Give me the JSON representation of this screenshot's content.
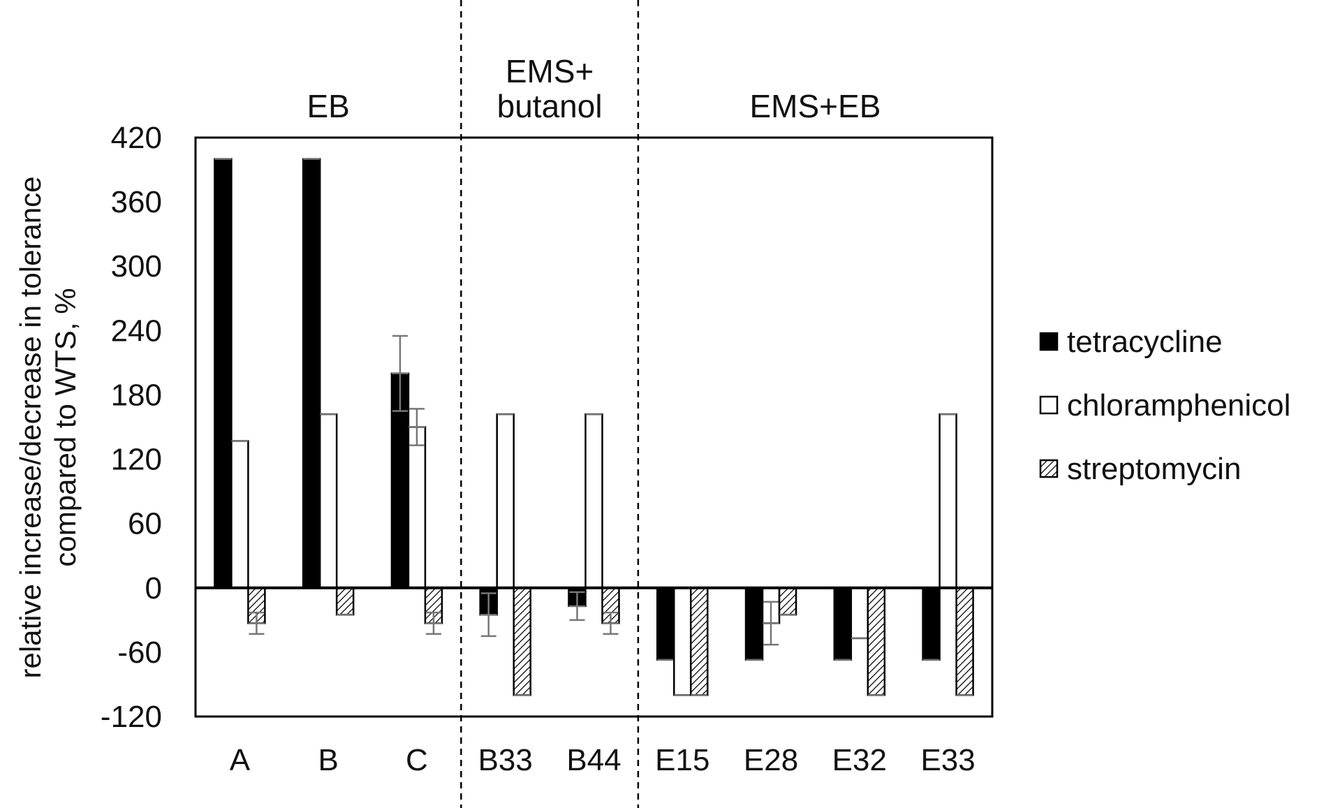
{
  "chart_data": {
    "type": "bar",
    "ylabel": [
      "relative increase/decrease in tolerance",
      "compared to WTS, %"
    ],
    "ylim": [
      -120,
      420
    ],
    "yticks": [
      420,
      360,
      300,
      240,
      180,
      120,
      60,
      0,
      -60,
      -120
    ],
    "categories": [
      "A",
      "B",
      "C",
      "B33",
      "B44",
      "E15",
      "E28",
      "E32",
      "E33"
    ],
    "groups": [
      {
        "label_lines": [
          "EB"
        ],
        "categories": [
          "A",
          "B",
          "C"
        ]
      },
      {
        "label_lines": [
          "EMS+",
          "butanol"
        ],
        "categories": [
          "B33",
          "B44"
        ]
      },
      {
        "label_lines": [
          "EMS+EB"
        ],
        "categories": [
          "E15",
          "E28",
          "E32",
          "E33"
        ]
      }
    ],
    "series": [
      {
        "name": "tetracycline",
        "fill": "black",
        "values": [
          400,
          400,
          200,
          -25,
          -17,
          -67,
          -67,
          -67,
          -67
        ],
        "errors": [
          0,
          0,
          35,
          20,
          13,
          0,
          0,
          0,
          0
        ]
      },
      {
        "name": "chloramphenicol",
        "fill": "white",
        "values": [
          137,
          162,
          150,
          162,
          162,
          -100,
          -33,
          -47,
          162
        ],
        "errors": [
          0,
          0,
          17,
          0,
          0,
          0,
          20,
          0,
          0
        ]
      },
      {
        "name": "streptomycin",
        "fill": "hatched",
        "values": [
          -33,
          -25,
          -33,
          -100,
          -33,
          -100,
          -25,
          -100,
          -100
        ],
        "errors": [
          10,
          0,
          10,
          0,
          10,
          0,
          0,
          0,
          0
        ]
      }
    ],
    "legend_position": "right",
    "grid": false,
    "colors": {
      "bar_stroke": "#000000",
      "error_bar": "#777777",
      "axis": "#000000"
    }
  }
}
